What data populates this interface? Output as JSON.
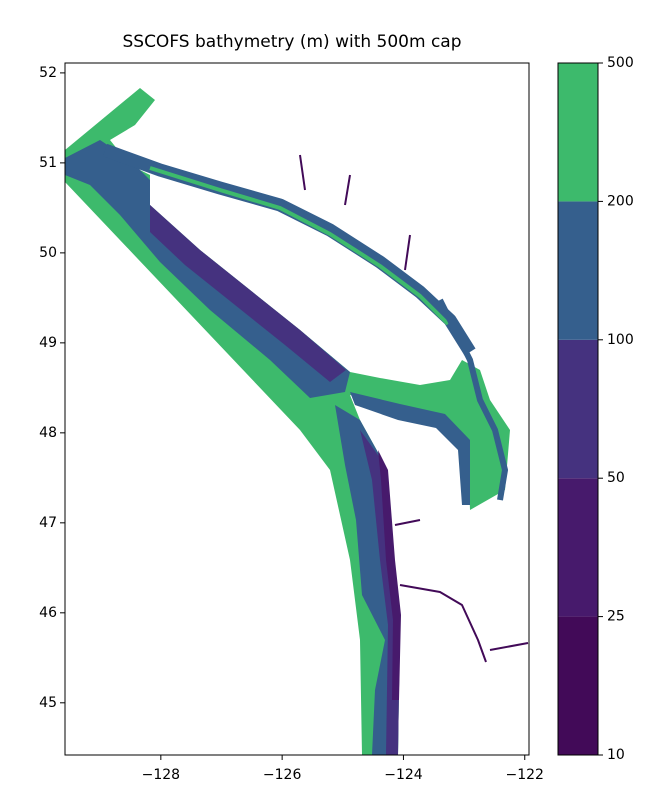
{
  "chart_data": {
    "type": "contourf",
    "title": "SSCOFS bathymetry (m) with 500m cap",
    "xlim": [
      -129.58,
      -121.93
    ],
    "ylim": [
      44.42,
      52.11
    ],
    "xticks": [
      {
        "value": -128,
        "label": "−128"
      },
      {
        "value": -126,
        "label": "−126"
      },
      {
        "value": -124,
        "label": "−124"
      },
      {
        "value": -122,
        "label": "−122"
      }
    ],
    "yticks": [
      45,
      46,
      47,
      48,
      49,
      50,
      51,
      52
    ],
    "levels": [
      10,
      25,
      50,
      100,
      200,
      500
    ],
    "band_colors": [
      "#420a58",
      "#471a6c",
      "#45327f",
      "#355f8d",
      "#3dba6c"
    ]
  }
}
